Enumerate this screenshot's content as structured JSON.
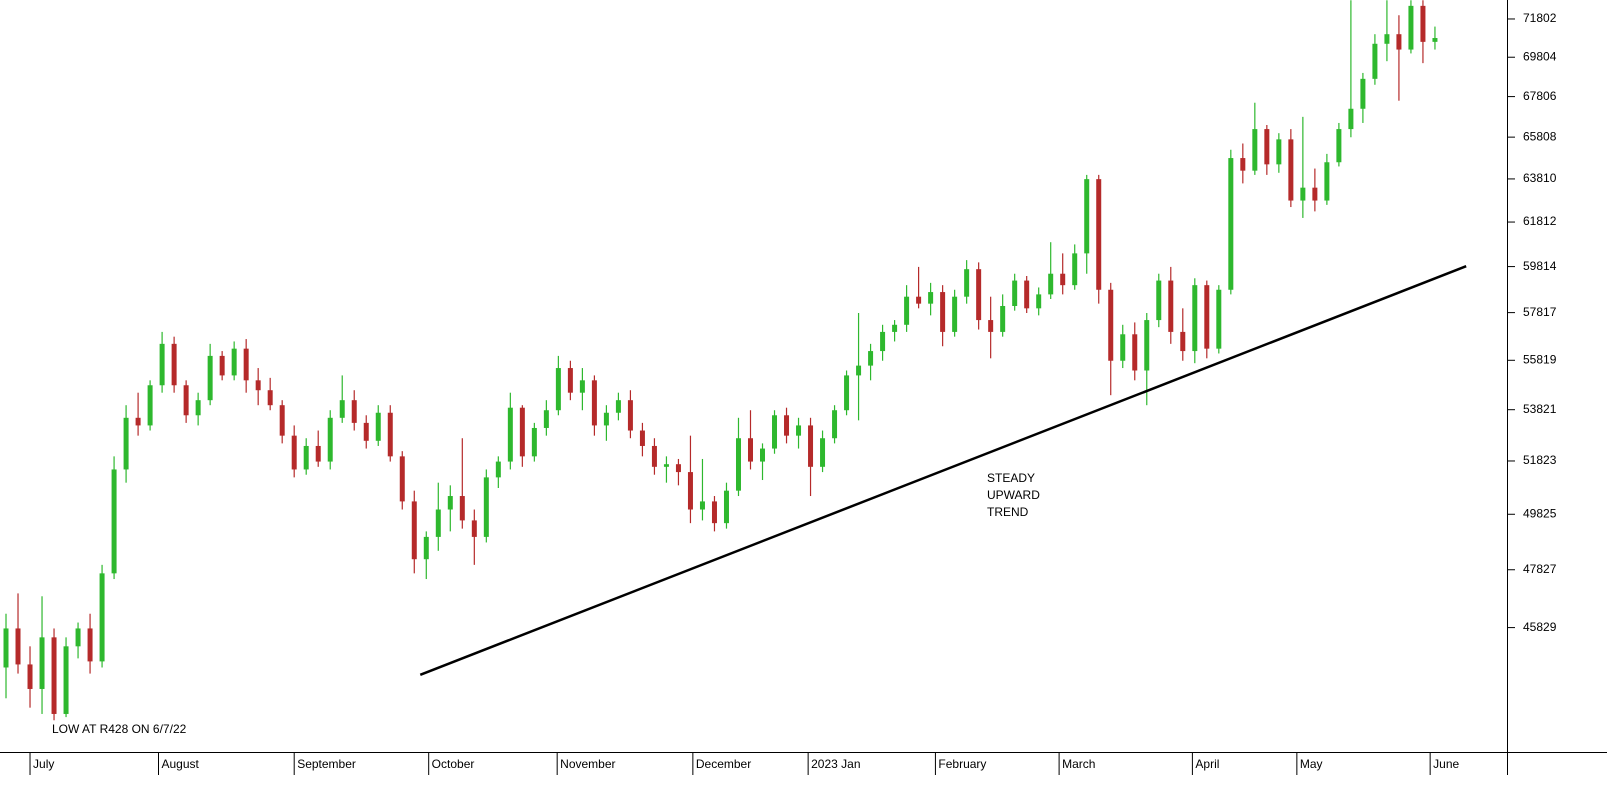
{
  "chart_data": {
    "type": "candlestick",
    "x": [
      0,
      1,
      2,
      3,
      4,
      5,
      6,
      7,
      8,
      9,
      10,
      11,
      12,
      13,
      14,
      15,
      16,
      17,
      18,
      19,
      20,
      21,
      22,
      23,
      24,
      25,
      26,
      27,
      28,
      29,
      30,
      31,
      32,
      33,
      34,
      35,
      36,
      37,
      38,
      39,
      40,
      41,
      42,
      43,
      44,
      45,
      46,
      47,
      48,
      49,
      50,
      51,
      52,
      53,
      54,
      55,
      56,
      57,
      58,
      59,
      60,
      61,
      62,
      63,
      64,
      65,
      66,
      67,
      68,
      69,
      70,
      71,
      72,
      73,
      74,
      75,
      76,
      77,
      78,
      79,
      80,
      81,
      82,
      83,
      84,
      85,
      86,
      87,
      88,
      89,
      90,
      91,
      92,
      93,
      94,
      95,
      96,
      97,
      98,
      99,
      100,
      101,
      102,
      103,
      104,
      105,
      106,
      107,
      108,
      109,
      110,
      111,
      112,
      113,
      114,
      115,
      116,
      117,
      118,
      119
    ],
    "open": [
      44500,
      45800,
      44600,
      43800,
      45500,
      43000,
      45200,
      45800,
      44700,
      47700,
      51500,
      53500,
      53200,
      54800,
      56500,
      54800,
      53600,
      54200,
      56000,
      55200,
      56300,
      55000,
      54600,
      54000,
      52800,
      51500,
      52400,
      51800,
      53500,
      54200,
      53300,
      52600,
      53700,
      52000,
      50300,
      48200,
      49000,
      50000,
      50500,
      49600,
      49000,
      51200,
      51800,
      53900,
      52000,
      53100,
      53800,
      55500,
      54500,
      55000,
      53200,
      53700,
      54200,
      53000,
      52400,
      51600,
      51700,
      51400,
      50000,
      50300,
      49500,
      50700,
      52700,
      51800,
      52300,
      53600,
      52800,
      53200,
      51600,
      52700,
      53800,
      55200,
      55600,
      56200,
      57000,
      57300,
      58500,
      58200,
      58700,
      57000,
      58500,
      59700,
      57500,
      57000,
      58100,
      59200,
      58000,
      58600,
      59500,
      59000,
      60400,
      63800,
      58800,
      55800,
      56900,
      55400,
      57500,
      59200,
      57000,
      56200,
      59000,
      56300,
      58800,
      64800,
      64200,
      66200,
      64500,
      65700,
      62800,
      63400,
      62800,
      64600,
      66200,
      67200,
      68700,
      70500,
      71000,
      70200,
      72500,
      70600
    ],
    "high": [
      46300,
      47000,
      45200,
      46900,
      45800,
      45500,
      46000,
      46300,
      48000,
      52000,
      54000,
      54500,
      55000,
      57000,
      56800,
      55000,
      54500,
      56500,
      56200,
      56600,
      56700,
      55500,
      55100,
      54200,
      53200,
      52700,
      53000,
      53800,
      55200,
      54600,
      53600,
      54000,
      54000,
      52200,
      50700,
      49200,
      51000,
      50900,
      52700,
      50000,
      51500,
      52000,
      54500,
      54000,
      53300,
      54200,
      56000,
      55800,
      55500,
      55200,
      54000,
      54500,
      54600,
      53300,
      52700,
      52000,
      51900,
      52800,
      51900,
      50500,
      51000,
      53500,
      53800,
      52500,
      53800,
      53900,
      53500,
      53500,
      53000,
      54000,
      55400,
      57800,
      56500,
      57300,
      57500,
      59000,
      59800,
      59100,
      59000,
      58800,
      60100,
      60000,
      58500,
      58600,
      59500,
      59400,
      58900,
      60900,
      60400,
      60800,
      64000,
      64000,
      59100,
      57300,
      57400,
      57800,
      59500,
      59800,
      58000,
      59300,
      59200,
      59000,
      65200,
      65500,
      67500,
      66400,
      66000,
      66200,
      66800,
      64300,
      65000,
      66500,
      72800,
      69000,
      71000,
      72800,
      72000,
      72800,
      72800,
      71400
    ],
    "low": [
      43500,
      44300,
      43200,
      43000,
      42800,
      42900,
      44800,
      44300,
      44500,
      47500,
      51000,
      52800,
      53000,
      54500,
      54500,
      53300,
      53200,
      54000,
      55000,
      55000,
      54500,
      54000,
      53800,
      52500,
      51200,
      51300,
      51600,
      51500,
      53300,
      53000,
      52300,
      52400,
      51800,
      50000,
      47700,
      47500,
      48500,
      49200,
      49300,
      48000,
      48800,
      50800,
      51500,
      51600,
      51800,
      52800,
      53600,
      54200,
      53800,
      52800,
      52600,
      53400,
      52700,
      52000,
      51300,
      51000,
      50900,
      49500,
      49600,
      49200,
      49300,
      50500,
      51500,
      51100,
      52100,
      52500,
      52300,
      50500,
      51400,
      52500,
      53600,
      53400,
      55000,
      55800,
      56600,
      57000,
      58000,
      57700,
      56400,
      56800,
      58200,
      57100,
      55900,
      56800,
      57900,
      57800,
      57700,
      58400,
      58600,
      58800,
      59500,
      58200,
      54400,
      55500,
      55000,
      54000,
      57200,
      56500,
      55800,
      55700,
      55900,
      56100,
      58600,
      63600,
      64000,
      64000,
      64100,
      62500,
      62000,
      62300,
      62600,
      64400,
      65800,
      66500,
      68400,
      69600,
      67600,
      70000,
      69500,
      70200
    ],
    "close": [
      45800,
      44600,
      43800,
      45500,
      43000,
      45200,
      45800,
      44700,
      47700,
      51500,
      53500,
      53200,
      54800,
      56500,
      54800,
      53600,
      54200,
      56000,
      55200,
      56300,
      55000,
      54600,
      54000,
      52800,
      51500,
      52400,
      51800,
      53500,
      54200,
      53300,
      52600,
      53700,
      52000,
      50300,
      48200,
      49000,
      50000,
      50500,
      49600,
      49000,
      51200,
      51800,
      53900,
      52000,
      53100,
      53800,
      55500,
      54500,
      55000,
      53200,
      53700,
      54200,
      53000,
      52400,
      51600,
      51700,
      51400,
      50000,
      50300,
      49500,
      50700,
      52700,
      51800,
      52300,
      53600,
      52800,
      53200,
      51600,
      52700,
      53800,
      55200,
      55600,
      56200,
      57000,
      57300,
      58500,
      58200,
      58700,
      57000,
      58500,
      59700,
      57500,
      57000,
      58100,
      59200,
      58000,
      58600,
      59500,
      59000,
      60400,
      63800,
      58800,
      55800,
      56900,
      55400,
      57500,
      59200,
      57000,
      56200,
      59000,
      56300,
      58800,
      64800,
      64200,
      66200,
      64500,
      65700,
      62800,
      63400,
      62800,
      64600,
      66200,
      67200,
      68700,
      70500,
      71000,
      70200,
      72500,
      70600,
      70800
    ],
    "up_color": "#2eb82e",
    "down_color": "#b52a2a",
    "xlim": [
      -0.5,
      125
    ],
    "ylim": [
      41810,
      72814
    ],
    "log_scale": true,
    "xticks": [
      {
        "value": 2,
        "label": "July"
      },
      {
        "value": 12.7,
        "label": "August"
      },
      {
        "value": 24,
        "label": "September"
      },
      {
        "value": 35.2,
        "label": "October"
      },
      {
        "value": 45.9,
        "label": "November"
      },
      {
        "value": 57.2,
        "label": "December"
      },
      {
        "value": 66.8,
        "label": "2023 Jan"
      },
      {
        "value": 77.4,
        "label": "February"
      },
      {
        "value": 87.7,
        "label": "March"
      },
      {
        "value": 98.8,
        "label": "April"
      },
      {
        "value": 107.5,
        "label": "May"
      },
      {
        "value": 118.6,
        "label": "June"
      }
    ],
    "yticks": [
      71802,
      69804,
      67806,
      65808,
      63810,
      61812,
      59814,
      57817,
      55819,
      53821,
      51823,
      49825,
      47827,
      45829
    ],
    "trendline": {
      "x": [
        34.5,
        121.6
      ],
      "y": [
        44260,
        59830
      ],
      "color": "#000000"
    },
    "annotations": [
      {
        "lines": [
          "LOW AT R428 ON 6/7/22"
        ],
        "color": "#2a2af0"
      },
      {
        "lines": [
          "STEADY",
          "UPWARD",
          "TREND"
        ],
        "color": "#2a2af0"
      }
    ]
  }
}
